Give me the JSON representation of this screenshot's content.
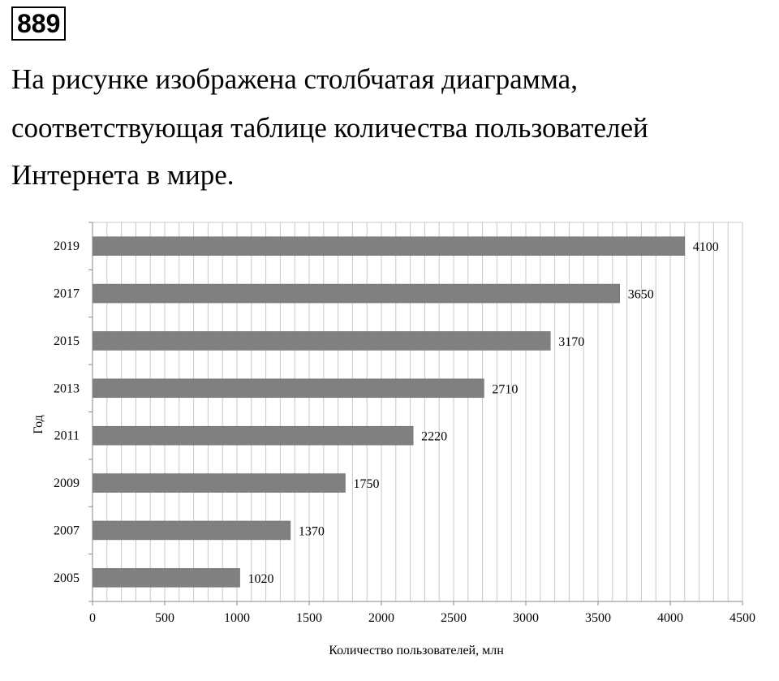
{
  "problem": {
    "number": "889",
    "text_lines": [
      "На рисунке изображена столбчатая диаграмма,",
      "соответствующая таблице количества пользователей",
      "Интернета в мире."
    ]
  },
  "chart_data": {
    "type": "bar",
    "orientation": "horizontal",
    "categories": [
      "2005",
      "2007",
      "2009",
      "2011",
      "2013",
      "2015",
      "2017",
      "2019"
    ],
    "values": [
      1020,
      1370,
      1750,
      2220,
      2710,
      3170,
      3650,
      4100
    ],
    "xlabel": "Количество пользователей, млн",
    "ylabel": "Год",
    "xlim": [
      0,
      4500
    ],
    "xticks": [
      0,
      500,
      1000,
      1500,
      2000,
      2500,
      3000,
      3500,
      4000,
      4500
    ],
    "grid": "vertical",
    "data_labels": true,
    "bar_color": "#808080",
    "grid_color": "#c8c8c8"
  }
}
